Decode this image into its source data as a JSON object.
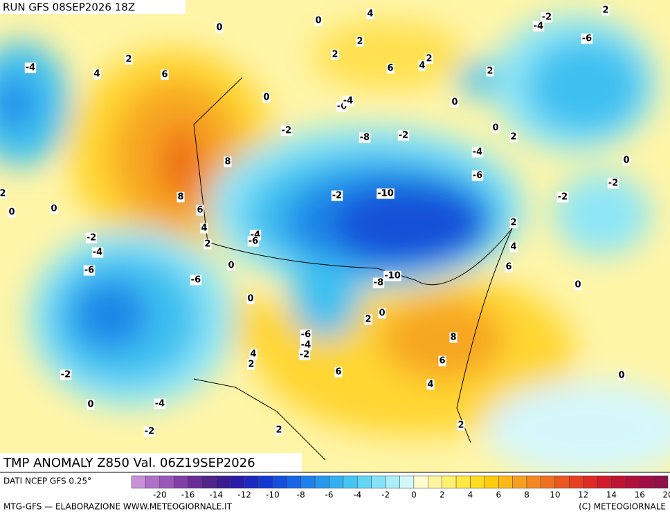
{
  "header": {
    "run": "RUN GFS 08SEP2026 18Z"
  },
  "title": "TMP ANOMALY Z850 Val. 06Z19SEP2026",
  "contour_labels": [
    "0",
    "0",
    "4",
    "-2",
    "-4",
    "2",
    "-6",
    "-4",
    "4",
    "2",
    "6",
    "2",
    "2",
    "6",
    "4",
    "2",
    "2",
    "0",
    "-6",
    "-4",
    "0",
    "-2",
    "-8",
    "-2",
    "0",
    "2",
    "8",
    "-4",
    "-6",
    "0",
    "-2",
    "2",
    "8",
    "-2",
    "-10",
    "-2",
    "0",
    "0",
    "6",
    "4",
    "2",
    "-4",
    "-6",
    "-2",
    "2",
    "4",
    "-4",
    "0",
    "6",
    "-6",
    "-10",
    "-8",
    "-6",
    "0",
    "0",
    "2",
    "0",
    "8",
    "-6",
    "-4",
    "-2",
    "4",
    "2",
    "6",
    "6",
    "-2",
    "0",
    "4",
    "0",
    "-4",
    "2",
    "-2",
    "2"
  ],
  "legend": {
    "labels": [
      "-20",
      "-16",
      "-14",
      "-12",
      "-10",
      "-8",
      "-6",
      "-4",
      "-2",
      "0",
      "2",
      "4",
      "6",
      "8",
      "10",
      "12",
      "14",
      "16",
      "20"
    ]
  },
  "footer": {
    "source": "DATI NCEP GFS 0.25°",
    "credit": "MTG-GFS — ELABORAZIONE WWW.METEOGIORNALE.IT",
    "copyright": "(C) METEOGIORNALE"
  }
}
